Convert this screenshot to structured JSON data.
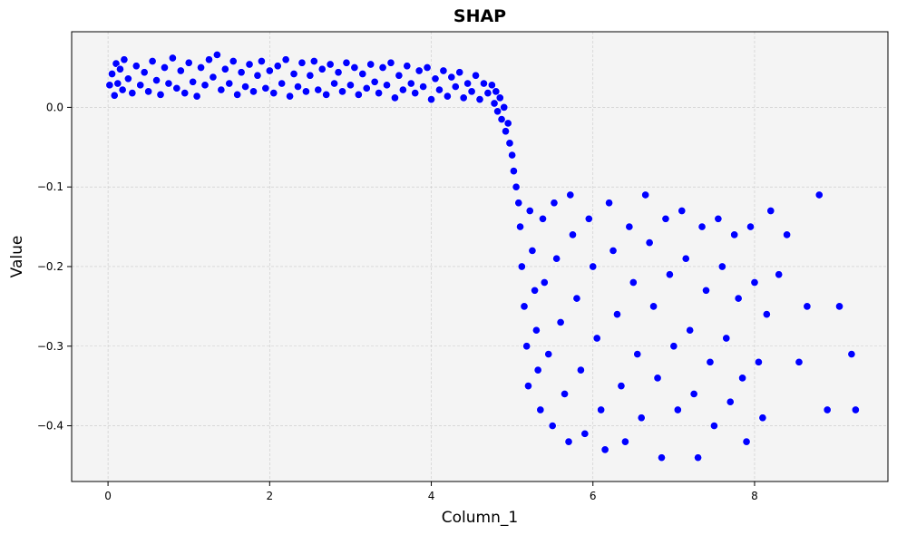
{
  "chart_data": {
    "type": "scatter",
    "title": "SHAP",
    "xlabel": "Column_1",
    "ylabel": "Value",
    "xlim": [
      -0.45,
      9.65
    ],
    "ylim": [
      -0.47,
      0.095
    ],
    "x_ticks": [
      0,
      2,
      4,
      6,
      8
    ],
    "y_ticks": [
      0.0,
      -0.1,
      -0.2,
      -0.3,
      -0.4
    ],
    "x_tick_labels": [
      "0",
      "2",
      "4",
      "6",
      "8"
    ],
    "y_tick_labels": [
      "0.0",
      "−0.1",
      "−0.2",
      "−0.3",
      "−0.4"
    ],
    "grid": true,
    "legend": "none",
    "colors": {
      "marker_fill": "#0000ff",
      "marker_edge": "#ffffff",
      "plot_background": "#f4f4f4",
      "grid": "#c8c8c8"
    },
    "points": [
      [
        0.02,
        0.028
      ],
      [
        0.05,
        0.042
      ],
      [
        0.08,
        0.015
      ],
      [
        0.1,
        0.055
      ],
      [
        0.12,
        0.03
      ],
      [
        0.15,
        0.048
      ],
      [
        0.18,
        0.022
      ],
      [
        0.2,
        0.06
      ],
      [
        0.25,
        0.036
      ],
      [
        0.3,
        0.018
      ],
      [
        0.35,
        0.052
      ],
      [
        0.4,
        0.028
      ],
      [
        0.45,
        0.044
      ],
      [
        0.5,
        0.02
      ],
      [
        0.55,
        0.058
      ],
      [
        0.6,
        0.034
      ],
      [
        0.65,
        0.016
      ],
      [
        0.7,
        0.05
      ],
      [
        0.75,
        0.03
      ],
      [
        0.8,
        0.062
      ],
      [
        0.85,
        0.024
      ],
      [
        0.9,
        0.046
      ],
      [
        0.95,
        0.018
      ],
      [
        1.0,
        0.056
      ],
      [
        1.05,
        0.032
      ],
      [
        1.1,
        0.014
      ],
      [
        1.15,
        0.05
      ],
      [
        1.2,
        0.028
      ],
      [
        1.25,
        0.06
      ],
      [
        1.3,
        0.038
      ],
      [
        1.35,
        0.066
      ],
      [
        1.4,
        0.022
      ],
      [
        1.45,
        0.048
      ],
      [
        1.5,
        0.03
      ],
      [
        1.55,
        0.058
      ],
      [
        1.6,
        0.016
      ],
      [
        1.65,
        0.044
      ],
      [
        1.7,
        0.026
      ],
      [
        1.75,
        0.054
      ],
      [
        1.8,
        0.02
      ],
      [
        1.85,
        0.04
      ],
      [
        1.9,
        0.058
      ],
      [
        1.95,
        0.024
      ],
      [
        2.0,
        0.046
      ],
      [
        2.05,
        0.018
      ],
      [
        2.1,
        0.052
      ],
      [
        2.15,
        0.03
      ],
      [
        2.2,
        0.06
      ],
      [
        2.25,
        0.014
      ],
      [
        2.3,
        0.042
      ],
      [
        2.35,
        0.026
      ],
      [
        2.4,
        0.056
      ],
      [
        2.45,
        0.02
      ],
      [
        2.5,
        0.04
      ],
      [
        2.55,
        0.058
      ],
      [
        2.6,
        0.022
      ],
      [
        2.65,
        0.048
      ],
      [
        2.7,
        0.016
      ],
      [
        2.75,
        0.054
      ],
      [
        2.8,
        0.03
      ],
      [
        2.85,
        0.044
      ],
      [
        2.9,
        0.02
      ],
      [
        2.95,
        0.056
      ],
      [
        3.0,
        0.028
      ],
      [
        3.05,
        0.05
      ],
      [
        3.1,
        0.016
      ],
      [
        3.15,
        0.042
      ],
      [
        3.2,
        0.024
      ],
      [
        3.25,
        0.054
      ],
      [
        3.3,
        0.032
      ],
      [
        3.35,
        0.018
      ],
      [
        3.4,
        0.05
      ],
      [
        3.45,
        0.028
      ],
      [
        3.5,
        0.056
      ],
      [
        3.55,
        0.012
      ],
      [
        3.6,
        0.04
      ],
      [
        3.65,
        0.022
      ],
      [
        3.7,
        0.052
      ],
      [
        3.75,
        0.03
      ],
      [
        3.8,
        0.018
      ],
      [
        3.85,
        0.046
      ],
      [
        3.9,
        0.026
      ],
      [
        3.95,
        0.05
      ],
      [
        4.0,
        0.01
      ],
      [
        4.05,
        0.036
      ],
      [
        4.1,
        0.022
      ],
      [
        4.15,
        0.046
      ],
      [
        4.2,
        0.014
      ],
      [
        4.25,
        0.038
      ],
      [
        4.3,
        0.026
      ],
      [
        4.35,
        0.044
      ],
      [
        4.4,
        0.012
      ],
      [
        4.45,
        0.03
      ],
      [
        4.5,
        0.02
      ],
      [
        4.55,
        0.04
      ],
      [
        4.6,
        0.01
      ],
      [
        4.65,
        0.03
      ],
      [
        4.7,
        0.018
      ],
      [
        4.75,
        0.028
      ],
      [
        4.78,
        0.005
      ],
      [
        4.8,
        0.02
      ],
      [
        4.82,
        -0.005
      ],
      [
        4.85,
        0.012
      ],
      [
        4.87,
        -0.015
      ],
      [
        4.9,
        0.0
      ],
      [
        4.92,
        -0.03
      ],
      [
        4.95,
        -0.02
      ],
      [
        4.97,
        -0.045
      ],
      [
        5.0,
        -0.06
      ],
      [
        5.02,
        -0.08
      ],
      [
        5.05,
        -0.1
      ],
      [
        5.08,
        -0.12
      ],
      [
        5.1,
        -0.15
      ],
      [
        5.12,
        -0.2
      ],
      [
        5.15,
        -0.25
      ],
      [
        5.18,
        -0.3
      ],
      [
        5.2,
        -0.35
      ],
      [
        5.22,
        -0.13
      ],
      [
        5.25,
        -0.18
      ],
      [
        5.28,
        -0.23
      ],
      [
        5.3,
        -0.28
      ],
      [
        5.32,
        -0.33
      ],
      [
        5.35,
        -0.38
      ],
      [
        5.38,
        -0.14
      ],
      [
        5.4,
        -0.22
      ],
      [
        5.45,
        -0.31
      ],
      [
        5.5,
        -0.4
      ],
      [
        5.52,
        -0.12
      ],
      [
        5.55,
        -0.19
      ],
      [
        5.6,
        -0.27
      ],
      [
        5.65,
        -0.36
      ],
      [
        5.7,
        -0.42
      ],
      [
        5.72,
        -0.11
      ],
      [
        5.75,
        -0.16
      ],
      [
        5.8,
        -0.24
      ],
      [
        5.85,
        -0.33
      ],
      [
        5.9,
        -0.41
      ],
      [
        5.95,
        -0.14
      ],
      [
        6.0,
        -0.2
      ],
      [
        6.05,
        -0.29
      ],
      [
        6.1,
        -0.38
      ],
      [
        6.15,
        -0.43
      ],
      [
        6.2,
        -0.12
      ],
      [
        6.25,
        -0.18
      ],
      [
        6.3,
        -0.26
      ],
      [
        6.35,
        -0.35
      ],
      [
        6.4,
        -0.42
      ],
      [
        6.45,
        -0.15
      ],
      [
        6.5,
        -0.22
      ],
      [
        6.55,
        -0.31
      ],
      [
        6.6,
        -0.39
      ],
      [
        6.65,
        -0.11
      ],
      [
        6.7,
        -0.17
      ],
      [
        6.75,
        -0.25
      ],
      [
        6.8,
        -0.34
      ],
      [
        6.85,
        -0.44
      ],
      [
        6.9,
        -0.14
      ],
      [
        6.95,
        -0.21
      ],
      [
        7.0,
        -0.3
      ],
      [
        7.05,
        -0.38
      ],
      [
        7.1,
        -0.13
      ],
      [
        7.15,
        -0.19
      ],
      [
        7.2,
        -0.28
      ],
      [
        7.25,
        -0.36
      ],
      [
        7.3,
        -0.44
      ],
      [
        7.35,
        -0.15
      ],
      [
        7.4,
        -0.23
      ],
      [
        7.45,
        -0.32
      ],
      [
        7.5,
        -0.4
      ],
      [
        7.55,
        -0.14
      ],
      [
        7.6,
        -0.2
      ],
      [
        7.65,
        -0.29
      ],
      [
        7.7,
        -0.37
      ],
      [
        7.75,
        -0.16
      ],
      [
        7.8,
        -0.24
      ],
      [
        7.85,
        -0.34
      ],
      [
        7.9,
        -0.42
      ],
      [
        7.95,
        -0.15
      ],
      [
        8.0,
        -0.22
      ],
      [
        8.05,
        -0.32
      ],
      [
        8.1,
        -0.39
      ],
      [
        8.15,
        -0.26
      ],
      [
        8.2,
        -0.13
      ],
      [
        8.3,
        -0.21
      ],
      [
        8.4,
        -0.16
      ],
      [
        8.55,
        -0.32
      ],
      [
        8.65,
        -0.25
      ],
      [
        8.8,
        -0.11
      ],
      [
        8.9,
        -0.38
      ],
      [
        9.05,
        -0.25
      ],
      [
        9.2,
        -0.31
      ],
      [
        9.25,
        -0.38
      ]
    ]
  }
}
